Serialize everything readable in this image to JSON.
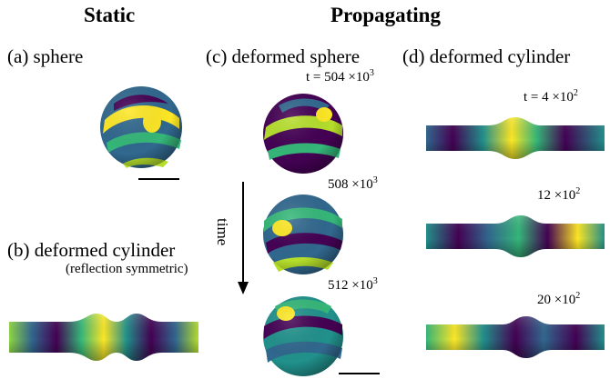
{
  "headings": {
    "static": "Static",
    "propagating": "Propagating"
  },
  "panels": {
    "a": {
      "label": "(a) sphere"
    },
    "b": {
      "label": "(b) deformed cylinder",
      "sublabel": "(reflection symmetric)"
    },
    "c": {
      "label": "(c) deformed sphere",
      "times": [
        {
          "base": "t = 504 ×10",
          "exp": "3"
        },
        {
          "base": "508 ×10",
          "exp": "3"
        },
        {
          "base": "512 ×10",
          "exp": "3"
        }
      ]
    },
    "d": {
      "label": "(d) deformed cylinder",
      "times": [
        {
          "base": "t = 4 ×10",
          "exp": "2"
        },
        {
          "base": "12 ×10",
          "exp": "2"
        },
        {
          "base": "20 ×10",
          "exp": "2"
        }
      ]
    }
  },
  "time_axis": {
    "label": "time"
  },
  "colors": {
    "dark": "#3b1a6b",
    "mid": "#21918c",
    "light": "#fde725"
  }
}
